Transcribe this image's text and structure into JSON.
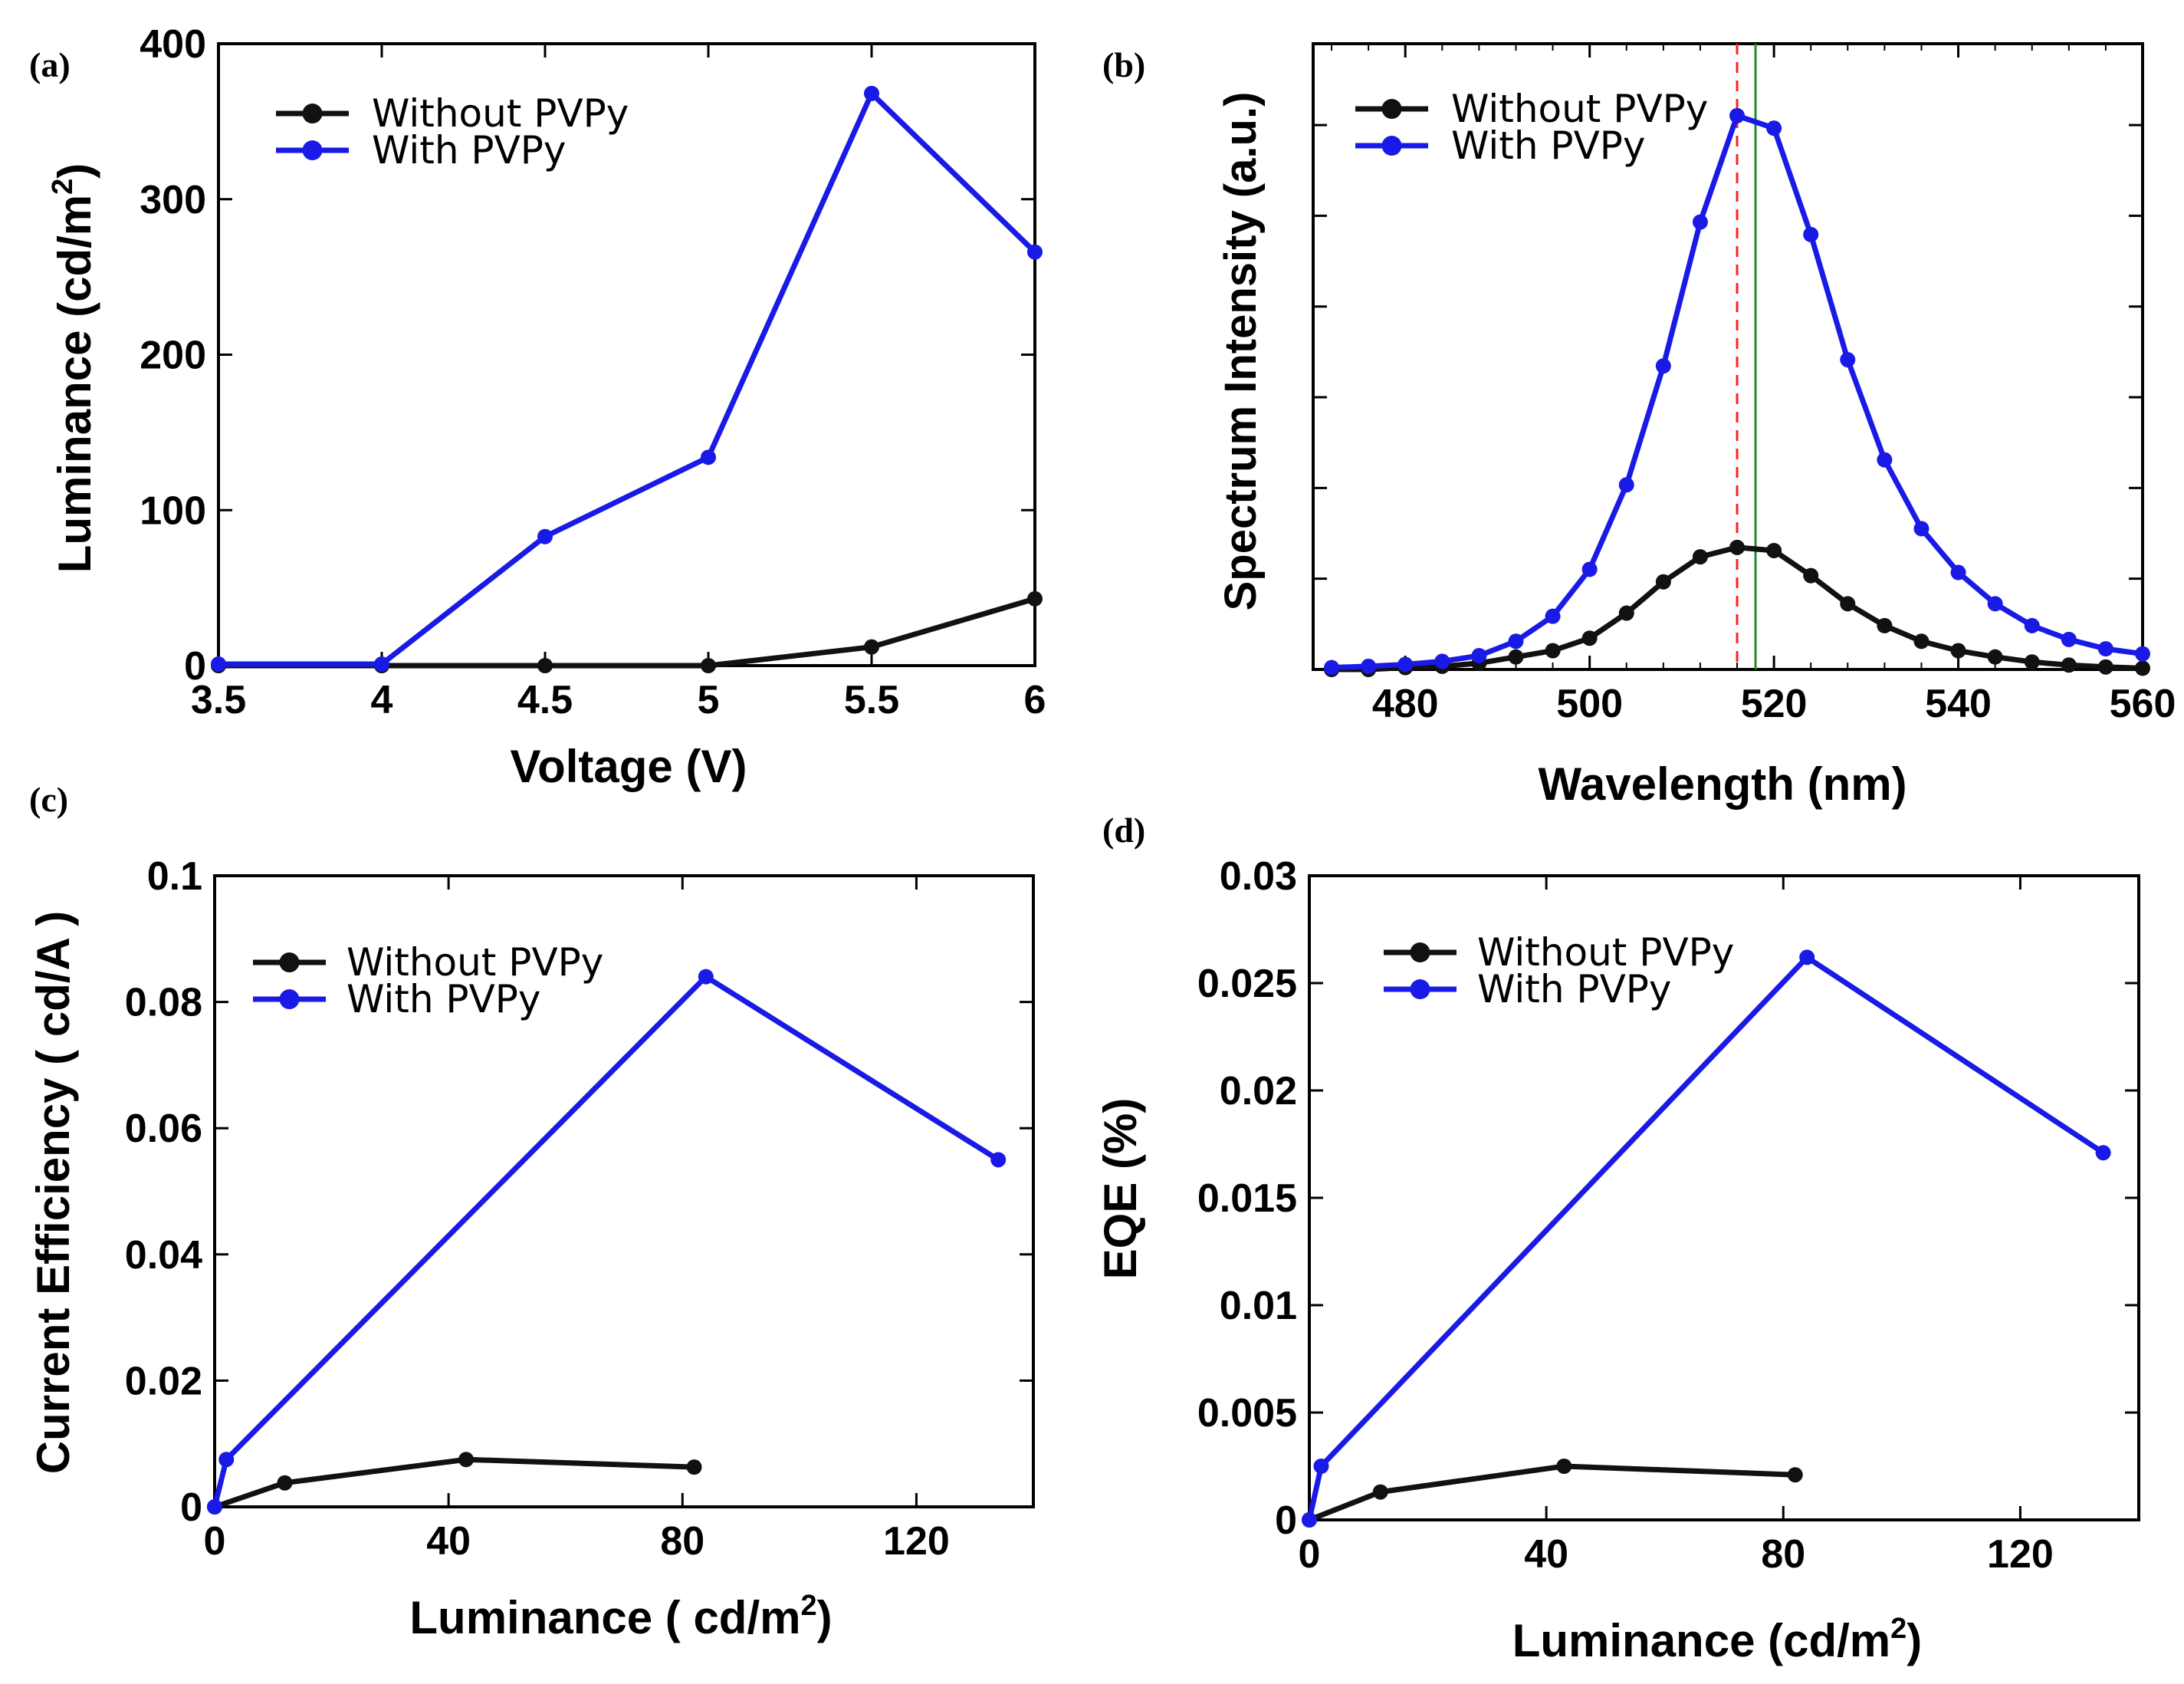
{
  "colors": {
    "without": "#111111",
    "with": "#1a1ae6",
    "peak_red": "#ff2020",
    "peak_green": "#2a8a2a"
  },
  "chart_data": [
    {
      "id": "a",
      "panel_label": "(a)",
      "type": "line",
      "xlabel": "Voltage (V)",
      "ylabel": "Luminance (cd/m",
      "ylabel_sup": "2",
      "ylabel_close": ")",
      "xlim": [
        3.5,
        6
      ],
      "ylim": [
        0,
        400
      ],
      "xticks": [
        3.5,
        4,
        4.5,
        5,
        5.5,
        6
      ],
      "xtick_labels": [
        "3.5",
        "4",
        "4.5",
        "5",
        "5.5",
        "6"
      ],
      "yticks": [
        0,
        100,
        200,
        300,
        400
      ],
      "ytick_labels": [
        "0",
        "100",
        "200",
        "300",
        "400"
      ],
      "legend_position": "top-left",
      "series": [
        {
          "name": "Without PVPy",
          "key": "without",
          "x": [
            3.5,
            4,
            4.5,
            5,
            5.5,
            6
          ],
          "y": [
            0,
            0,
            0,
            0,
            12,
            43
          ]
        },
        {
          "name": "With PVPy",
          "key": "with",
          "x": [
            3.5,
            4,
            4.5,
            5,
            5.5,
            6
          ],
          "y": [
            1,
            1,
            83,
            134,
            368,
            266
          ]
        }
      ]
    },
    {
      "id": "b",
      "panel_label": "(b)",
      "type": "line",
      "xlabel": "Wavelength (nm)",
      "ylabel": "Spectrum Intensity (a.u.)",
      "xlim": [
        470,
        560
      ],
      "ylim": [
        0,
        1
      ],
      "xticks": [
        480,
        500,
        520,
        540,
        560
      ],
      "xtick_labels": [
        "480",
        "500",
        "520",
        "540",
        "560"
      ],
      "yticks": [
        0.145,
        0.29,
        0.435,
        0.58,
        0.725,
        0.87
      ],
      "ytick_labels": [],
      "reference_lines": [
        {
          "x": 516,
          "style": "dashed",
          "color_key": "peak_red"
        },
        {
          "x": 518,
          "style": "solid",
          "color_key": "peak_green"
        }
      ],
      "legend_position": "top-left",
      "series": [
        {
          "name": "Without PVPy",
          "key": "without",
          "x": [
            472,
            476,
            480,
            484,
            488,
            492,
            496,
            500,
            504,
            508,
            512,
            516,
            520,
            524,
            528,
            532,
            536,
            540,
            544,
            548,
            552,
            556,
            560
          ],
          "y": [
            0.0,
            0.0,
            0.003,
            0.005,
            0.01,
            0.02,
            0.03,
            0.05,
            0.09,
            0.14,
            0.18,
            0.195,
            0.19,
            0.15,
            0.105,
            0.07,
            0.045,
            0.03,
            0.02,
            0.012,
            0.007,
            0.004,
            0.002
          ]
        },
        {
          "name": "With PVPy",
          "key": "with",
          "x": [
            472,
            476,
            480,
            484,
            488,
            492,
            496,
            500,
            504,
            508,
            512,
            516,
            520,
            524,
            528,
            532,
            536,
            540,
            544,
            548,
            552,
            556,
            560
          ],
          "y": [
            0.003,
            0.005,
            0.008,
            0.013,
            0.022,
            0.045,
            0.085,
            0.16,
            0.295,
            0.485,
            0.715,
            0.885,
            0.865,
            0.695,
            0.495,
            0.335,
            0.225,
            0.155,
            0.105,
            0.07,
            0.048,
            0.033,
            0.025
          ]
        }
      ]
    },
    {
      "id": "c",
      "panel_label": "(c)",
      "type": "line",
      "xlabel": "Luminance ( cd/m",
      "xlabel_sup": "2",
      "xlabel_close": ")",
      "ylabel": "Current Efficiency ( cd/A )",
      "xlim": [
        0,
        140
      ],
      "ylim": [
        0,
        0.1
      ],
      "xticks": [
        0,
        40,
        80,
        120
      ],
      "xtick_labels": [
        "0",
        "40",
        "80",
        "120"
      ],
      "yticks": [
        0,
        0.02,
        0.04,
        0.06,
        0.08,
        0.1
      ],
      "ytick_labels": [
        "0",
        "0.02",
        "0.04",
        "0.06",
        "0.08",
        "0.1"
      ],
      "legend_position": "top-left",
      "series": [
        {
          "name": "Without PVPy",
          "key": "without",
          "x": [
            0,
            12,
            43,
            82
          ],
          "y": [
            0,
            0.0038,
            0.0075,
            0.0063
          ]
        },
        {
          "name": "With PVPy",
          "key": "with",
          "x": [
            0,
            2,
            84,
            134
          ],
          "y": [
            0,
            0.0075,
            0.084,
            0.055
          ]
        }
      ]
    },
    {
      "id": "d",
      "panel_label": "(d)",
      "type": "line",
      "xlabel": "Luminance (cd/m",
      "xlabel_sup": "2",
      "xlabel_close": ")",
      "ylabel": "EQE (%)",
      "xlim": [
        0,
        140
      ],
      "ylim": [
        0,
        0.03
      ],
      "xticks": [
        0,
        40,
        80,
        120
      ],
      "xtick_labels": [
        "0",
        "40",
        "80",
        "120"
      ],
      "yticks": [
        0,
        0.005,
        0.01,
        0.015,
        0.02,
        0.025,
        0.03
      ],
      "ytick_labels": [
        "0",
        "0.005",
        "0.01",
        "0.015",
        "0.02",
        "0.025",
        "0.03"
      ],
      "legend_position": "top-left",
      "series": [
        {
          "name": "Without PVPy",
          "key": "without",
          "x": [
            0,
            12,
            43,
            82
          ],
          "y": [
            0,
            0.0013,
            0.0025,
            0.0021
          ]
        },
        {
          "name": "With PVPy",
          "key": "with",
          "x": [
            0,
            2,
            84,
            134
          ],
          "y": [
            0,
            0.0025,
            0.0262,
            0.0171
          ]
        }
      ]
    }
  ]
}
